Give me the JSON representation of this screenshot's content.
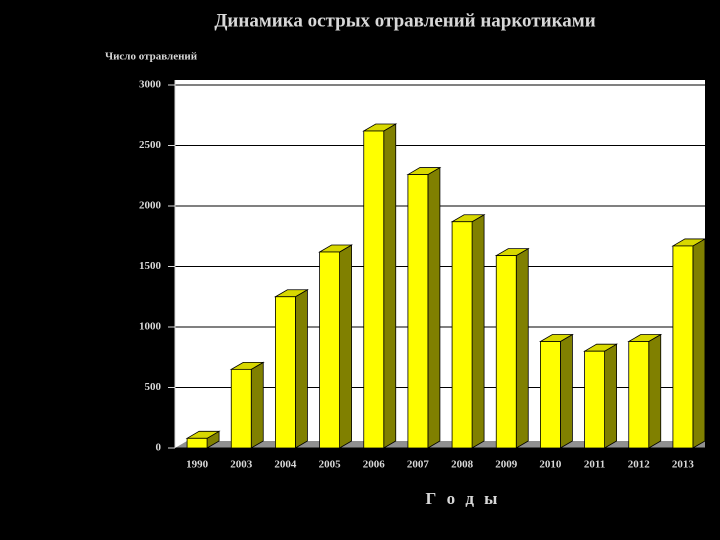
{
  "chart_data": {
    "type": "bar3d",
    "title": "Динамика острых отравлений наркотиками",
    "y_label": "Число отравлений",
    "x_label": "Г о д ы",
    "categories": [
      "1990",
      "2003",
      "2004",
      "2005",
      "2006",
      "2007",
      "2008",
      "2009",
      "2010",
      "2011",
      "2012",
      "2013"
    ],
    "values": [
      80,
      650,
      1250,
      1620,
      2620,
      2260,
      1870,
      1590,
      880,
      800,
      880,
      1670
    ],
    "color": "#ffff00",
    "ylim": [
      0,
      3000
    ],
    "yticks": [
      0,
      500,
      1000,
      1500,
      2000,
      2500,
      3000
    ],
    "grid": true
  }
}
